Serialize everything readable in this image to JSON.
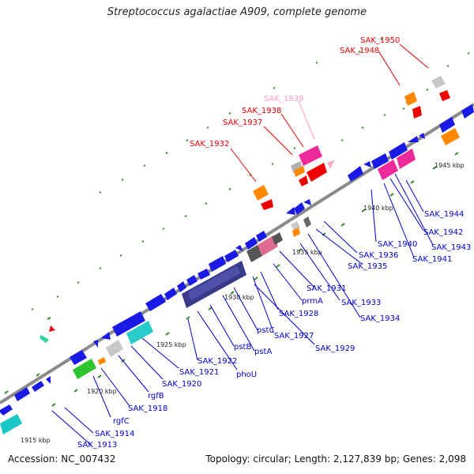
{
  "title": "Streptococcus agalactiae A909, complete genome",
  "footer": {
    "accession": "Accession: NC_007432",
    "summary": "Topology: circular; Length: 2,127,839 bp; Genes: 2,098"
  },
  "colors": {
    "blue_gene": "#1a1ae6",
    "highlight_label": "#e60000",
    "pseudo_label": "#ff99cc",
    "label_blue": "#0000cc",
    "backbone": "#888888",
    "tick_green": "#2a8a2a"
  },
  "scale_labels": [
    "1915 kbp",
    "1920 kbp",
    "1925 kbp",
    "1930 kbp",
    "1935 kbp",
    "1940 kbp",
    "1945 kbp"
  ],
  "lower_labels": [
    "SAK_1913",
    "SAK_1914",
    "rgfC",
    "SAK_1918",
    "rgfB",
    "SAK_1920",
    "SAK_1921",
    "SAK_1922",
    "phoU",
    "pstB",
    "pstA",
    "pstC",
    "SAK_1927",
    "SAK_1928",
    "prmA",
    "SAK_1931",
    "SAK_1929",
    "SAK_1933",
    "SAK_1934",
    "SAK_1935",
    "SAK_1936",
    "SAK_1940",
    "SAK_1941",
    "SAK_1942",
    "SAK_1943",
    "SAK_1944"
  ],
  "upper_labels": [
    "SAK_1932",
    "SAK_1937",
    "SAK_1938",
    "SAK_1939",
    "SAK_1948",
    "SAK_1950"
  ]
}
